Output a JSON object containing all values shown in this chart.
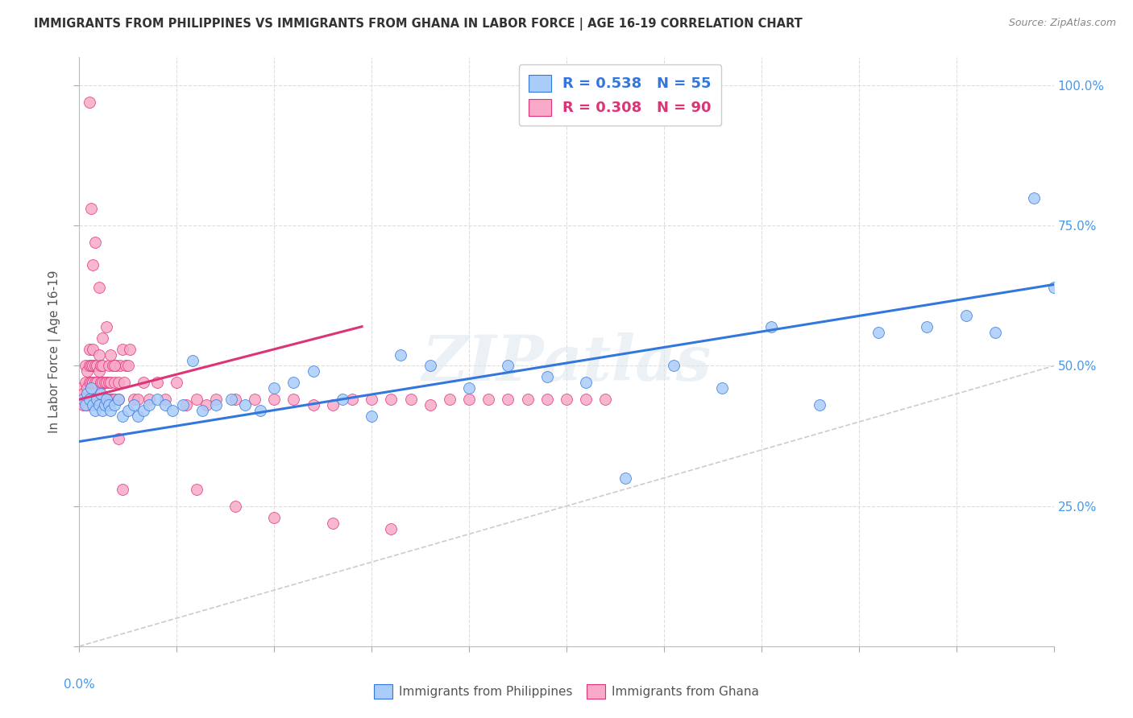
{
  "title": "IMMIGRANTS FROM PHILIPPINES VS IMMIGRANTS FROM GHANA IN LABOR FORCE | AGE 16-19 CORRELATION CHART",
  "source": "Source: ZipAtlas.com",
  "ylabel": "In Labor Force | Age 16-19",
  "xlim": [
    0.0,
    0.5
  ],
  "ylim": [
    0.0,
    1.05
  ],
  "philippines_R": 0.538,
  "philippines_N": 55,
  "ghana_R": 0.308,
  "ghana_N": 90,
  "philippines_color": "#aaccf8",
  "ghana_color": "#f8aac8",
  "philippines_line_color": "#3377dd",
  "ghana_line_color": "#dd3377",
  "diagonal_color": "#cccccc",
  "background_color": "#ffffff",
  "grid_color": "#dddddd",
  "title_color": "#333333",
  "axis_label_color": "#4499ee",
  "watermark": "ZIPatlas",
  "philippines_x": [
    0.002,
    0.003,
    0.004,
    0.005,
    0.006,
    0.007,
    0.008,
    0.009,
    0.01,
    0.011,
    0.012,
    0.013,
    0.014,
    0.015,
    0.016,
    0.018,
    0.02,
    0.022,
    0.025,
    0.028,
    0.03,
    0.033,
    0.036,
    0.04,
    0.044,
    0.048,
    0.053,
    0.058,
    0.063,
    0.07,
    0.078,
    0.085,
    0.093,
    0.1,
    0.11,
    0.12,
    0.135,
    0.15,
    0.165,
    0.18,
    0.2,
    0.22,
    0.24,
    0.26,
    0.28,
    0.305,
    0.33,
    0.355,
    0.38,
    0.41,
    0.435,
    0.455,
    0.47,
    0.49,
    0.5
  ],
  "philippines_y": [
    0.44,
    0.43,
    0.45,
    0.44,
    0.46,
    0.43,
    0.42,
    0.44,
    0.43,
    0.45,
    0.42,
    0.43,
    0.44,
    0.43,
    0.42,
    0.43,
    0.44,
    0.41,
    0.42,
    0.43,
    0.41,
    0.42,
    0.43,
    0.44,
    0.43,
    0.42,
    0.43,
    0.51,
    0.42,
    0.43,
    0.44,
    0.43,
    0.42,
    0.46,
    0.47,
    0.49,
    0.44,
    0.41,
    0.52,
    0.5,
    0.46,
    0.5,
    0.48,
    0.47,
    0.3,
    0.5,
    0.46,
    0.57,
    0.43,
    0.56,
    0.57,
    0.59,
    0.56,
    0.8,
    0.64
  ],
  "ghana_x": [
    0.001,
    0.001,
    0.002,
    0.002,
    0.003,
    0.003,
    0.003,
    0.004,
    0.004,
    0.004,
    0.005,
    0.005,
    0.005,
    0.005,
    0.006,
    0.006,
    0.006,
    0.007,
    0.007,
    0.007,
    0.007,
    0.008,
    0.008,
    0.008,
    0.009,
    0.009,
    0.009,
    0.01,
    0.01,
    0.01,
    0.01,
    0.011,
    0.011,
    0.011,
    0.012,
    0.012,
    0.012,
    0.013,
    0.013,
    0.014,
    0.014,
    0.015,
    0.015,
    0.015,
    0.016,
    0.016,
    0.017,
    0.017,
    0.018,
    0.018,
    0.019,
    0.02,
    0.02,
    0.021,
    0.022,
    0.023,
    0.024,
    0.025,
    0.026,
    0.028,
    0.03,
    0.033,
    0.036,
    0.04,
    0.044,
    0.05,
    0.055,
    0.06,
    0.065,
    0.07,
    0.08,
    0.09,
    0.1,
    0.11,
    0.12,
    0.13,
    0.14,
    0.15,
    0.16,
    0.17,
    0.18,
    0.19,
    0.2,
    0.21,
    0.22,
    0.23,
    0.24,
    0.25,
    0.26,
    0.27
  ],
  "ghana_y": [
    0.44,
    0.46,
    0.43,
    0.45,
    0.44,
    0.47,
    0.5,
    0.43,
    0.46,
    0.49,
    0.44,
    0.47,
    0.5,
    0.53,
    0.44,
    0.47,
    0.5,
    0.44,
    0.47,
    0.5,
    0.53,
    0.44,
    0.47,
    0.5,
    0.44,
    0.47,
    0.5,
    0.44,
    0.46,
    0.49,
    0.52,
    0.44,
    0.47,
    0.5,
    0.44,
    0.47,
    0.5,
    0.44,
    0.47,
    0.44,
    0.47,
    0.44,
    0.47,
    0.5,
    0.44,
    0.47,
    0.44,
    0.5,
    0.44,
    0.47,
    0.5,
    0.44,
    0.47,
    0.5,
    0.53,
    0.47,
    0.5,
    0.5,
    0.53,
    0.44,
    0.44,
    0.47,
    0.44,
    0.47,
    0.44,
    0.47,
    0.43,
    0.44,
    0.43,
    0.44,
    0.44,
    0.44,
    0.44,
    0.44,
    0.43,
    0.43,
    0.44,
    0.44,
    0.44,
    0.44,
    0.43,
    0.44,
    0.44,
    0.44,
    0.44,
    0.44,
    0.44,
    0.44,
    0.44,
    0.44
  ],
  "ghana_outliers_x": [
    0.005,
    0.006,
    0.007,
    0.008,
    0.01,
    0.012,
    0.014,
    0.016,
    0.018,
    0.02,
    0.022,
    0.06,
    0.08,
    0.1,
    0.13,
    0.16
  ],
  "ghana_outliers_y": [
    0.97,
    0.78,
    0.68,
    0.72,
    0.64,
    0.55,
    0.57,
    0.52,
    0.5,
    0.37,
    0.28,
    0.28,
    0.25,
    0.23,
    0.22,
    0.21
  ],
  "phil_trendline_x0": 0.0,
  "phil_trendline_y0": 0.365,
  "phil_trendline_x1": 0.5,
  "phil_trendline_y1": 0.645,
  "ghana_trendline_x0": 0.0,
  "ghana_trendline_y0": 0.44,
  "ghana_trendline_x1": 0.145,
  "ghana_trendline_y1": 0.57
}
